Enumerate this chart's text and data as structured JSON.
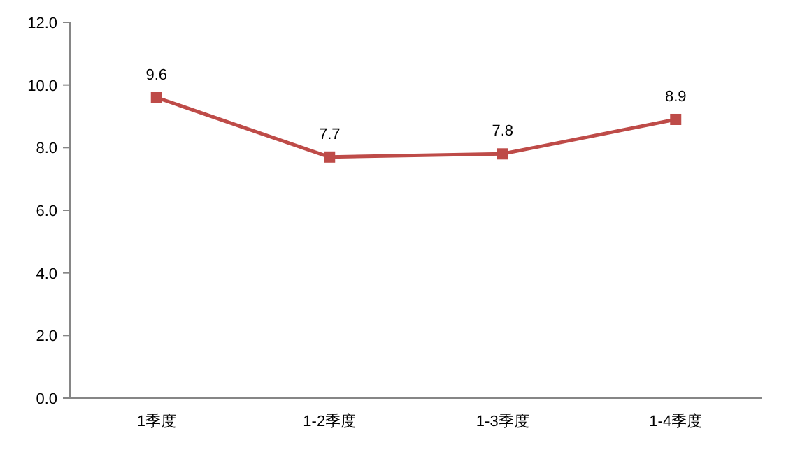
{
  "chart_data": {
    "type": "line",
    "categories": [
      "1季度",
      "1-2季度",
      "1-3季度",
      "1-4季度"
    ],
    "series": [
      {
        "color": "#be4b48",
        "values": [
          9.6,
          7.7,
          7.8,
          8.9
        ]
      }
    ],
    "ylim": [
      0,
      12
    ],
    "yticks": [
      {
        "value": 0,
        "label": "0.0"
      },
      {
        "value": 2,
        "label": "2.0"
      },
      {
        "value": 4,
        "label": "4.0"
      },
      {
        "value": 6,
        "label": "6.0"
      },
      {
        "value": 8,
        "label": "8.0"
      },
      {
        "value": 10,
        "label": "10.0"
      },
      {
        "value": 12,
        "label": "12.0"
      }
    ],
    "data_labels": true,
    "marker": "square",
    "line_style": "solid"
  }
}
